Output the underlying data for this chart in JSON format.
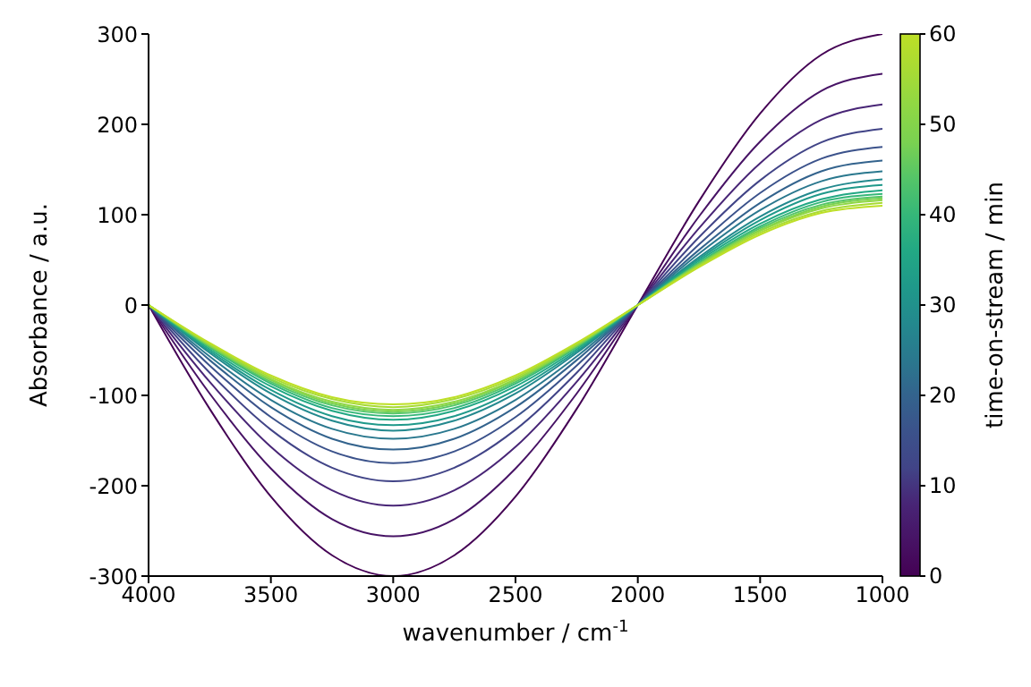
{
  "chart_data": {
    "type": "line",
    "xlabel": "wavenumber / cm$^{-1}$",
    "ylabel": "Absorbance / a.u.",
    "clabel": "time-on-stream / min",
    "clim": [
      0,
      60
    ],
    "cticks": [
      0,
      10,
      20,
      30,
      40,
      50,
      60
    ],
    "x": [
      4000,
      3750,
      3500,
      3250,
      3000,
      2750,
      2500,
      2250,
      2000,
      1750,
      1500,
      1250,
      1000
    ],
    "xlim": [
      4000,
      1000
    ],
    "xticks": [
      4000,
      3500,
      3000,
      2500,
      2000,
      1500,
      1000
    ],
    "ylim": [
      -300,
      300
    ],
    "yticks": [
      -300,
      -200,
      -100,
      0,
      100,
      200,
      300
    ],
    "grid": false,
    "legend": false,
    "marker": "none",
    "line_style": "solid",
    "series": [
      {
        "color": "#440154",
        "values": [
          0,
          -115,
          -212,
          -277,
          -300,
          -277,
          -212,
          -115,
          0,
          115,
          212,
          277,
          300
        ]
      },
      {
        "color": "#471365",
        "values": [
          0,
          -98,
          -181,
          -237,
          -256,
          -237,
          -181,
          -98,
          0,
          98,
          181,
          237,
          256
        ]
      },
      {
        "color": "#482576",
        "values": [
          0,
          -85,
          -157,
          -205,
          -222,
          -205,
          -157,
          -85,
          0,
          85,
          157,
          205,
          222
        ]
      },
      {
        "color": "#414487",
        "values": [
          0,
          -75,
          -138,
          -180,
          -195,
          -180,
          -138,
          -75,
          0,
          75,
          138,
          180,
          195
        ]
      },
      {
        "color": "#3b528b",
        "values": [
          0,
          -67,
          -124,
          -162,
          -175,
          -162,
          -124,
          -67,
          0,
          67,
          124,
          162,
          175
        ]
      },
      {
        "color": "#33638d",
        "values": [
          0,
          -61,
          -113,
          -148,
          -160,
          -148,
          -113,
          -61,
          0,
          61,
          113,
          148,
          160
        ]
      },
      {
        "color": "#2a788e",
        "values": [
          0,
          -57,
          -105,
          -137,
          -148,
          -137,
          -105,
          -57,
          0,
          57,
          105,
          137,
          148
        ]
      },
      {
        "color": "#23898e",
        "values": [
          0,
          -53,
          -98,
          -128,
          -139,
          -128,
          -98,
          -53,
          0,
          53,
          98,
          128,
          139
        ]
      },
      {
        "color": "#1f998a",
        "values": [
          0,
          -51,
          -94,
          -123,
          -133,
          -123,
          -94,
          -51,
          0,
          51,
          94,
          123,
          133
        ]
      },
      {
        "color": "#22a884",
        "values": [
          0,
          -49,
          -90,
          -117,
          -127,
          -117,
          -90,
          -49,
          0,
          49,
          90,
          117,
          127
        ]
      },
      {
        "color": "#35b779",
        "values": [
          0,
          -47,
          -87,
          -114,
          -123,
          -114,
          -87,
          -47,
          0,
          47,
          87,
          114,
          123
        ]
      },
      {
        "color": "#54c568",
        "values": [
          0,
          -46,
          -85,
          -111,
          -120,
          -111,
          -85,
          -46,
          0,
          46,
          85,
          111,
          120
        ]
      },
      {
        "color": "#7ad151",
        "values": [
          0,
          -45,
          -83,
          -109,
          -118,
          -109,
          -83,
          -45,
          0,
          45,
          83,
          109,
          118
        ]
      },
      {
        "color": "#8fd744",
        "values": [
          0,
          -44,
          -82,
          -107,
          -116,
          -107,
          -82,
          -44,
          0,
          44,
          82,
          107,
          116
        ]
      },
      {
        "color": "#a8db34",
        "values": [
          0,
          -43,
          -80,
          -104,
          -113,
          -104,
          -80,
          -43,
          0,
          43,
          80,
          104,
          113
        ]
      },
      {
        "color": "#bddf26",
        "values": [
          0,
          -42,
          -78,
          -102,
          -110,
          -102,
          -78,
          -42,
          0,
          42,
          78,
          102,
          110
        ]
      }
    ]
  }
}
